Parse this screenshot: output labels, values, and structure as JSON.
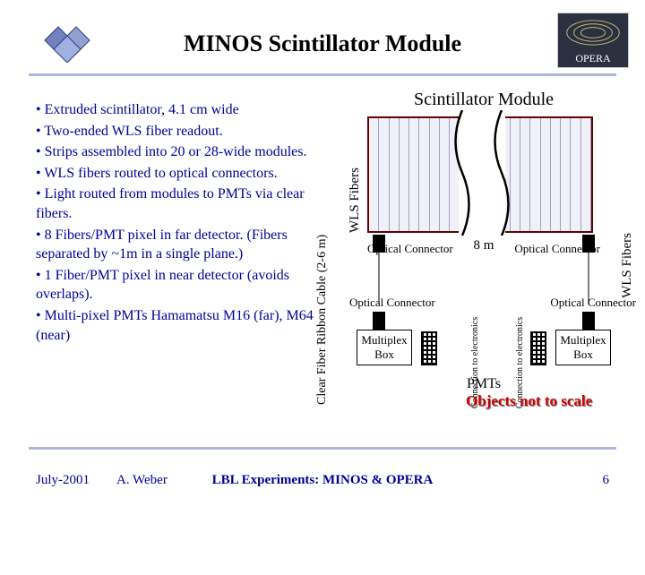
{
  "header": {
    "title": "MINOS Scintillator Module",
    "opera_label": "OPERA"
  },
  "bullets": [
    "Extruded scintillator, 4.1 cm wide",
    "Two-ended WLS fiber readout.",
    "Strips assembled into 20 or 28-wide modules.",
    "WLS fibers routed to optical connectors.",
    "Light routed from modules to PMTs via clear fibers.",
    "8 Fibers/PMT pixel in far detector. (Fibers separated by ~1m in a single plane.)",
    "1 Fiber/PMT pixel in near detector (avoids overlaps).",
    "Multi-pixel PMTs  Hamamatsu M16 (far), M64 (near)"
  ],
  "diagram": {
    "title": "Scintillator Module",
    "wls_label": "WLS Fibers",
    "cable_label": "Clear Fiber Ribbon Cable (2-6 m)",
    "optical_connector": "Optical Connector",
    "length": "8 m",
    "multiplex": "Multiplex Box",
    "conn_elec": "Connection to electronics",
    "pmts": "PMTs",
    "not_to_scale": "Objects not to scale",
    "stripe_count": 22
  },
  "footer": {
    "date": "July-2001",
    "author": "A. Weber",
    "center": "LBL Experiments: MINOS & OPERA",
    "page": "6"
  },
  "colors": {
    "text_primary": "#000099",
    "rule": "#aeb6e0",
    "module_border": "#660000",
    "warning": "#cc0000"
  }
}
